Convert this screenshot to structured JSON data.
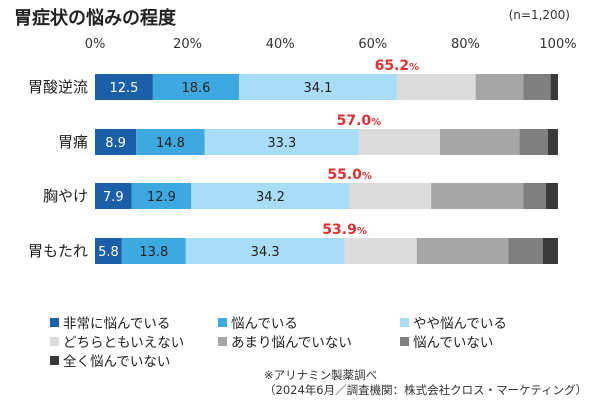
{
  "header": {
    "title": "胃症状の悩みの程度",
    "sample": "(n=1,200)"
  },
  "chart_data": {
    "type": "bar",
    "orientation": "horizontal",
    "stacked": true,
    "title": "胃症状の悩みの程度",
    "xlim": [
      0,
      100
    ],
    "xticks": [
      "0%",
      "20%",
      "40%",
      "60%",
      "80%",
      "100%"
    ],
    "categories": [
      "胃酸逆流",
      "胃痛",
      "胸やけ",
      "胃もたれ"
    ],
    "series": [
      {
        "name": "非常に悩んでいる",
        "color": "#1a5fa8",
        "values": [
          12.5,
          8.9,
          7.9,
          5.8
        ],
        "labels": [
          "12.5",
          "8.9",
          "7.9",
          "5.8"
        ]
      },
      {
        "name": "悩んでいる",
        "color": "#3ea9e0",
        "values": [
          18.6,
          14.8,
          12.9,
          13.8
        ],
        "labels": [
          "18.6",
          "14.8",
          "12.9",
          "13.8"
        ]
      },
      {
        "name": "やや悩んでいる",
        "color": "#a9dcf5",
        "values": [
          34.1,
          33.3,
          34.2,
          34.3
        ],
        "labels": [
          "34.1",
          "33.3",
          "34.2",
          "34.3"
        ]
      },
      {
        "name": "どちらともいえない",
        "color": "#dcdcdc",
        "values": [
          17.0,
          17.5,
          17.6,
          15.6
        ]
      },
      {
        "name": "あまり悩んでいない",
        "color": "#a6a6a6",
        "values": [
          10.3,
          17.2,
          19.9,
          19.8
        ]
      },
      {
        "name": "悩んでいない",
        "color": "#7f7f7f",
        "values": [
          5.9,
          6.1,
          4.9,
          7.4
        ]
      },
      {
        "name": "全く悩んでいない",
        "color": "#3a3a3a",
        "values": [
          1.6,
          2.2,
          2.6,
          3.3
        ]
      }
    ],
    "totals": [
      {
        "text": "65.2",
        "unit": "%"
      },
      {
        "text": "57.0",
        "unit": "%"
      },
      {
        "text": "55.0",
        "unit": "%"
      },
      {
        "text": "53.9",
        "unit": "%"
      }
    ],
    "total_color": "#e03030",
    "legend_position": "bottom"
  },
  "notes": {
    "line1": "※アリナミン製薬調べ",
    "line2": "（2024年6月／調査機関：株式会社クロス・マーケティング）"
  }
}
